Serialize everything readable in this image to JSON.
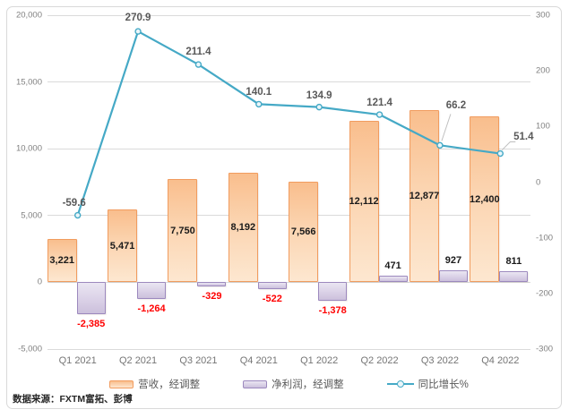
{
  "source_note": "数据来源：FXTM富拓、彭博",
  "colors": {
    "revenue_fill_top": "#F9BE8D",
    "revenue_fill_mid": "#FBD4B0",
    "revenue_fill_bottom": "#FDE7D0",
    "revenue_border": "#F19C5F",
    "profit_fill_top": "#EAE6F2",
    "profit_fill_mid": "#DCD3E8",
    "profit_fill_bottom": "#CCC0DC",
    "profit_border": "#9C89BE",
    "line": "#45A9C6",
    "marker_fill": "#EAF6FA",
    "leader": "#BFBFBF",
    "negative_label": "#FF0000",
    "gridline": "#DADADA",
    "axis_text": "#808080",
    "data_label": "#1A1A1A",
    "line_label": "#595959"
  },
  "chart_data": {
    "type": "combo",
    "categories": [
      "Q1 2021",
      "Q2 2021",
      "Q3 2021",
      "Q4 2021",
      "Q1 2022",
      "Q2 2022",
      "Q3 2022",
      "Q4 2022"
    ],
    "series": [
      {
        "name": "营收，经调整",
        "type": "bar",
        "axis": "left",
        "values": [
          3221,
          5471,
          7750,
          8192,
          7566,
          12112,
          12877,
          12400
        ],
        "labels": [
          "3,221",
          "5,471",
          "7,750",
          "8,192",
          "7,566",
          "12,112",
          "12,877",
          "12,400"
        ]
      },
      {
        "name": "净利润，经调整",
        "type": "bar",
        "axis": "left",
        "values": [
          -2385,
          -1264,
          -329,
          -522,
          -1378,
          471,
          927,
          811
        ],
        "labels": [
          "-2,385",
          "-1,264",
          "-329",
          "-522",
          "-1,378",
          "471",
          "927",
          "811"
        ]
      },
      {
        "name": "同比增长%",
        "type": "line",
        "axis": "right",
        "values": [
          -59.6,
          270.9,
          211.4,
          140.1,
          134.9,
          121.4,
          66.2,
          51.4
        ],
        "labels": [
          "-59.6",
          "270.9",
          "211.4",
          "140.1",
          "134.9",
          "121.4",
          "66.2",
          "51.4"
        ]
      }
    ],
    "left_axis": {
      "min": -5000,
      "max": 20000,
      "tick_values": [
        20000,
        15000,
        10000,
        5000,
        0,
        -5000
      ],
      "tick_labels": [
        "20,000",
        "15,000",
        "10,000",
        "5,000",
        "0",
        "-5,000"
      ]
    },
    "right_axis": {
      "min": -300,
      "max": 300,
      "tick_values": [
        300,
        200,
        100,
        0,
        -100,
        -200,
        -300
      ],
      "tick_labels": [
        "300",
        "200",
        "100",
        "0",
        "-100",
        "-200",
        "-300"
      ]
    },
    "grid": true,
    "legend_position": "bottom"
  }
}
